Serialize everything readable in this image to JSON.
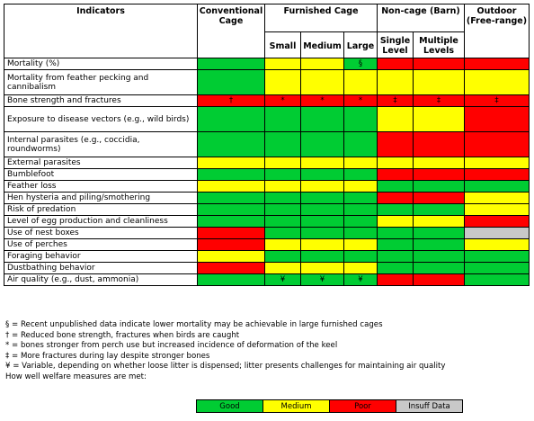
{
  "header": {
    "indicators": "Indicators",
    "conventional": "Conventional Cage",
    "furnished": "Furnished Cage",
    "noncage": "Non-cage (Barn)",
    "outdoor": "Outdoor (Free-range)",
    "small": "Small",
    "medium": "Medium",
    "large": "Large",
    "single": "Single Level",
    "multiple": "Multiple Levels"
  },
  "rows": [
    {
      "label": "Mortality (%)",
      "cells": [
        {
          "c": "G",
          "t": ""
        },
        {
          "c": "Y",
          "t": ""
        },
        {
          "c": "Y",
          "t": ""
        },
        {
          "c": "G",
          "t": "§"
        },
        {
          "c": "R",
          "t": ""
        },
        {
          "c": "R",
          "t": ""
        },
        {
          "c": "R",
          "t": ""
        }
      ]
    },
    {
      "label": "Mortality from feather pecking and cannibalism",
      "cells": [
        {
          "c": "G",
          "t": ""
        },
        {
          "c": "Y",
          "t": ""
        },
        {
          "c": "Y",
          "t": ""
        },
        {
          "c": "Y",
          "t": ""
        },
        {
          "c": "Y",
          "t": ""
        },
        {
          "c": "Y",
          "t": ""
        },
        {
          "c": "Y",
          "t": ""
        }
      ]
    },
    {
      "label": "Bone strength and fractures",
      "cells": [
        {
          "c": "R",
          "t": "†"
        },
        {
          "c": "R",
          "t": "*"
        },
        {
          "c": "R",
          "t": "*"
        },
        {
          "c": "R",
          "t": "*"
        },
        {
          "c": "R",
          "t": "‡"
        },
        {
          "c": "R",
          "t": "‡"
        },
        {
          "c": "R",
          "t": "‡"
        }
      ]
    },
    {
      "label": "Exposure to disease vectors (e.g., wild birds)",
      "cells": [
        {
          "c": "G",
          "t": ""
        },
        {
          "c": "G",
          "t": ""
        },
        {
          "c": "G",
          "t": ""
        },
        {
          "c": "G",
          "t": ""
        },
        {
          "c": "Y",
          "t": ""
        },
        {
          "c": "Y",
          "t": ""
        },
        {
          "c": "R",
          "t": ""
        }
      ]
    },
    {
      "label": "Internal parasites (e.g., coccidia, roundworms)",
      "cells": [
        {
          "c": "G",
          "t": ""
        },
        {
          "c": "G",
          "t": ""
        },
        {
          "c": "G",
          "t": ""
        },
        {
          "c": "G",
          "t": ""
        },
        {
          "c": "R",
          "t": ""
        },
        {
          "c": "R",
          "t": ""
        },
        {
          "c": "R",
          "t": ""
        }
      ]
    },
    {
      "label": "External parasites",
      "cells": [
        {
          "c": "Y",
          "t": ""
        },
        {
          "c": "Y",
          "t": ""
        },
        {
          "c": "Y",
          "t": ""
        },
        {
          "c": "Y",
          "t": ""
        },
        {
          "c": "Y",
          "t": ""
        },
        {
          "c": "Y",
          "t": ""
        },
        {
          "c": "Y",
          "t": ""
        }
      ]
    },
    {
      "label": "Bumblefoot",
      "cells": [
        {
          "c": "G",
          "t": ""
        },
        {
          "c": "G",
          "t": ""
        },
        {
          "c": "G",
          "t": ""
        },
        {
          "c": "G",
          "t": ""
        },
        {
          "c": "R",
          "t": ""
        },
        {
          "c": "R",
          "t": ""
        },
        {
          "c": "R",
          "t": ""
        }
      ]
    },
    {
      "label": "Feather loss",
      "cells": [
        {
          "c": "Y",
          "t": ""
        },
        {
          "c": "Y",
          "t": ""
        },
        {
          "c": "Y",
          "t": ""
        },
        {
          "c": "Y",
          "t": ""
        },
        {
          "c": "G",
          "t": ""
        },
        {
          "c": "G",
          "t": ""
        },
        {
          "c": "G",
          "t": ""
        }
      ]
    },
    {
      "label": "Hen hysteria and piling/smothering",
      "cells": [
        {
          "c": "G",
          "t": ""
        },
        {
          "c": "G",
          "t": ""
        },
        {
          "c": "G",
          "t": ""
        },
        {
          "c": "G",
          "t": ""
        },
        {
          "c": "R",
          "t": ""
        },
        {
          "c": "R",
          "t": ""
        },
        {
          "c": "Y",
          "t": ""
        }
      ]
    },
    {
      "label": "Risk of predation",
      "cells": [
        {
          "c": "G",
          "t": ""
        },
        {
          "c": "G",
          "t": ""
        },
        {
          "c": "G",
          "t": ""
        },
        {
          "c": "G",
          "t": ""
        },
        {
          "c": "G",
          "t": ""
        },
        {
          "c": "G",
          "t": ""
        },
        {
          "c": "Y",
          "t": ""
        }
      ]
    },
    {
      "label": "Level of egg production and cleanliness",
      "cells": [
        {
          "c": "G",
          "t": ""
        },
        {
          "c": "G",
          "t": ""
        },
        {
          "c": "G",
          "t": ""
        },
        {
          "c": "G",
          "t": ""
        },
        {
          "c": "Y",
          "t": ""
        },
        {
          "c": "Y",
          "t": ""
        },
        {
          "c": "R",
          "t": ""
        }
      ]
    },
    {
      "label": "Use of nest boxes",
      "cells": [
        {
          "c": "R",
          "t": ""
        },
        {
          "c": "G",
          "t": ""
        },
        {
          "c": "G",
          "t": ""
        },
        {
          "c": "G",
          "t": ""
        },
        {
          "c": "G",
          "t": ""
        },
        {
          "c": "G",
          "t": ""
        },
        {
          "c": "I",
          "t": ""
        }
      ]
    },
    {
      "label": "Use of perches",
      "cells": [
        {
          "c": "R",
          "t": ""
        },
        {
          "c": "Y",
          "t": ""
        },
        {
          "c": "Y",
          "t": ""
        },
        {
          "c": "Y",
          "t": ""
        },
        {
          "c": "G",
          "t": ""
        },
        {
          "c": "G",
          "t": ""
        },
        {
          "c": "Y",
          "t": ""
        }
      ]
    },
    {
      "label": "Foraging behavior",
      "cells": [
        {
          "c": "Y",
          "t": ""
        },
        {
          "c": "G",
          "t": ""
        },
        {
          "c": "G",
          "t": ""
        },
        {
          "c": "G",
          "t": ""
        },
        {
          "c": "G",
          "t": ""
        },
        {
          "c": "G",
          "t": ""
        },
        {
          "c": "G",
          "t": ""
        }
      ]
    },
    {
      "label": "Dustbathing behavior",
      "cells": [
        {
          "c": "R",
          "t": ""
        },
        {
          "c": "Y",
          "t": ""
        },
        {
          "c": "Y",
          "t": ""
        },
        {
          "c": "Y",
          "t": ""
        },
        {
          "c": "G",
          "t": ""
        },
        {
          "c": "G",
          "t": ""
        },
        {
          "c": "G",
          "t": ""
        }
      ]
    },
    {
      "label": "Air quality (e.g., dust, ammonia)",
      "cells": [
        {
          "c": "G",
          "t": ""
        },
        {
          "c": "G",
          "t": "¥"
        },
        {
          "c": "G",
          "t": "¥"
        },
        {
          "c": "G",
          "t": "¥"
        },
        {
          "c": "R",
          "t": ""
        },
        {
          "c": "R",
          "t": ""
        },
        {
          "c": "G",
          "t": ""
        }
      ]
    }
  ],
  "notes": [
    "§ = Recent unpublished data indicate lower mortality may be achievable in large furnished cages",
    "† = Reduced bone strength, fractures when birds are caught",
    "* = bones stronger from perch use but increased incidence of deformation of the keel",
    "‡ = More fractures during lay despite stronger bones",
    "¥ = Variable, depending on whether loose litter is dispensed; litter presents challenges for maintaining air quality",
    "How well welfare measures are met:"
  ],
  "legend": [
    {
      "label": "Good",
      "c": "G"
    },
    {
      "label": "Medium",
      "c": "Y"
    },
    {
      "label": "Poor",
      "c": "R"
    },
    {
      "label": "Insuff Data",
      "c": "I"
    }
  ],
  "colors": {
    "G": "#00cc33",
    "Y": "#ffff00",
    "R": "#ff0000",
    "I": "#c8c8c8"
  }
}
